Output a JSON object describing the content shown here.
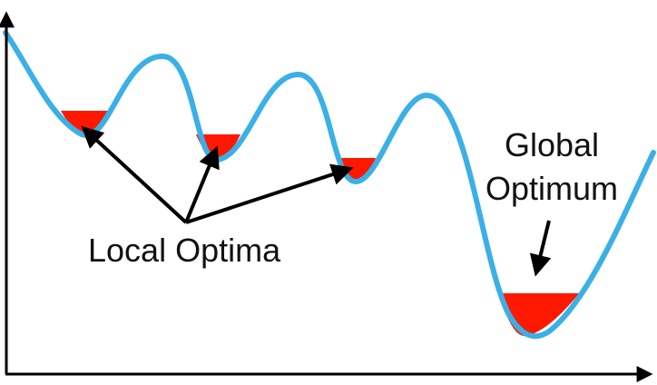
{
  "labels": {
    "local": "Local Optima",
    "global_line1": "Global",
    "global_line2": "Optimum"
  },
  "colors": {
    "curve": "#3ab0e6",
    "fill": "#ff1800",
    "axis": "#000000",
    "arrow": "#000000",
    "text": "#111111"
  }
}
